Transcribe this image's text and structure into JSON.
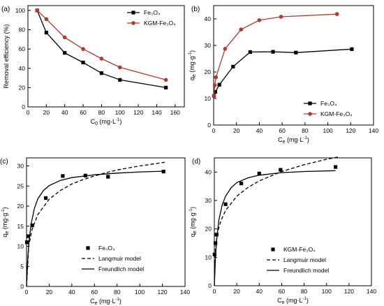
{
  "chart_data": [
    {
      "type": "line",
      "panel_label": "(a)",
      "xlabel": "C",
      "xlabel_sub": "0",
      "xlabel_unit": " (mg·L",
      "ylabel": "Removal efficiency (%)",
      "xlim": [
        0,
        170
      ],
      "ylim": [
        0,
        105
      ],
      "xticks": [
        0,
        20,
        40,
        60,
        80,
        100,
        120,
        140,
        160
      ],
      "yticks": [
        0,
        20,
        40,
        60,
        80,
        100
      ],
      "legend": "top-right",
      "series": [
        {
          "name": "Fe₃O₄",
          "color": "#000000",
          "marker": "square",
          "x": [
            10,
            20,
            40,
            60,
            80,
            100,
            150
          ],
          "y": [
            100,
            77,
            56,
            46,
            35,
            28,
            20
          ]
        },
        {
          "name": "KGM-Fe₃O₄",
          "color": "#b03a2e",
          "marker": "circle",
          "x": [
            10,
            20,
            40,
            60,
            80,
            100,
            150
          ],
          "y": [
            100,
            91,
            72,
            60,
            50,
            41,
            28
          ]
        }
      ]
    },
    {
      "type": "line",
      "panel_label": "(b)",
      "xlabel": "C",
      "xlabel_sub": "e",
      "xlabel_unit": " (mg·L",
      "ylabel": "q",
      "ylabel_sub": "e",
      "ylabel_unit": " (mg·g",
      "xlim": [
        0,
        140
      ],
      "ylim": [
        0,
        45
      ],
      "xticks": [
        0,
        20,
        40,
        60,
        80,
        100,
        120,
        140
      ],
      "yticks": [
        0,
        10,
        20,
        30,
        40
      ],
      "legend": "bottom-right",
      "series": [
        {
          "name": "Fe₃O₄",
          "color": "#000000",
          "marker": "square",
          "x": [
            0.3,
            1.5,
            5,
            17,
            32,
            52,
            72,
            121
          ],
          "y": [
            11,
            12.5,
            15.2,
            22,
            27.5,
            27.6,
            27.3,
            28.6
          ]
        },
        {
          "name": "KGM-Fe₃O₄",
          "color": "#b03a2e",
          "marker": "circle",
          "x": [
            0.2,
            1,
            2,
            10,
            24,
            40,
            59,
            108
          ],
          "y": [
            11,
            15,
            18,
            28.7,
            36,
            39.5,
            40.8,
            41.8
          ]
        }
      ]
    },
    {
      "type": "scatter",
      "panel_label": "(c)",
      "xlabel": "C",
      "xlabel_sub": "e",
      "xlabel_unit": " (mg·L",
      "ylabel": "q",
      "ylabel_sub": "e",
      "ylabel_unit": " (mg·g",
      "xlim": [
        0,
        140
      ],
      "ylim": [
        0,
        32
      ],
      "xticks": [
        0,
        20,
        40,
        60,
        80,
        100,
        120,
        140
      ],
      "yticks": [
        0,
        5,
        10,
        15,
        20,
        25,
        30
      ],
      "legend": "bottom-right",
      "series": [
        {
          "name": "Fe₃O₄",
          "color": "#000000",
          "marker": "square",
          "style": "points",
          "x": [
            0.3,
            1.5,
            5,
            17,
            32,
            52,
            72,
            121
          ],
          "y": [
            11,
            12.5,
            15.2,
            22,
            27.5,
            27.6,
            27.3,
            28.6
          ]
        },
        {
          "name": "Langmuir model",
          "color": "#000000",
          "style": "dashed",
          "x": [
            0,
            2,
            5,
            10,
            20,
            30,
            40,
            50,
            60,
            70,
            80,
            90,
            100,
            110,
            122
          ],
          "y": [
            0,
            10.2,
            14.3,
            17.9,
            21.7,
            23.9,
            25.5,
            26.6,
            27.5,
            28.3,
            29,
            29.5,
            30,
            30.4,
            30.9
          ]
        },
        {
          "name": "Freundlich model",
          "color": "#000000",
          "style": "solid",
          "x": [
            0,
            1,
            2,
            4,
            7,
            10,
            15,
            20,
            30,
            40,
            60,
            80,
            100,
            122
          ],
          "y": [
            0,
            6.5,
            10.5,
            15.5,
            19.5,
            21.8,
            23.9,
            25.1,
            26.4,
            27.1,
            27.8,
            28.2,
            28.5,
            28.7
          ]
        }
      ]
    },
    {
      "type": "scatter",
      "panel_label": "(d)",
      "xlabel": "C",
      "xlabel_sub": "e",
      "xlabel_unit": " (mg·L",
      "ylabel": "q",
      "ylabel_sub": "e",
      "ylabel_unit": " (mg·g",
      "xlim": [
        0,
        140
      ],
      "ylim": [
        0,
        45
      ],
      "xticks": [
        0,
        20,
        40,
        60,
        80,
        100,
        120,
        140
      ],
      "yticks": [
        0,
        10,
        20,
        30,
        40
      ],
      "legend": "bottom-right",
      "series": [
        {
          "name": "KGM-Fe₃O₄",
          "color": "#000000",
          "marker": "square",
          "style": "points",
          "x": [
            0.2,
            1,
            2,
            10,
            24,
            40,
            59,
            108
          ],
          "y": [
            11,
            15,
            18,
            28.7,
            36,
            39.5,
            40.8,
            41.8
          ]
        },
        {
          "name": "Langmuir model",
          "color": "#000000",
          "style": "dashed",
          "x": [
            0,
            1,
            3,
            6,
            10,
            20,
            30,
            40,
            60,
            80,
            100,
            110
          ],
          "y": [
            0,
            13,
            19,
            23,
            26.5,
            31.5,
            34.6,
            36.9,
            40.2,
            42.6,
            44.5,
            45.3
          ]
        },
        {
          "name": "Freundlich model",
          "color": "#000000",
          "style": "solid",
          "x": [
            0,
            1,
            2,
            4,
            7,
            10,
            15,
            20,
            30,
            40,
            60,
            80,
            108
          ],
          "y": [
            0,
            10,
            16,
            23,
            28.5,
            31.5,
            34.5,
            36.3,
            38,
            38.9,
            39.8,
            40.2,
            40.5
          ]
        }
      ]
    }
  ]
}
